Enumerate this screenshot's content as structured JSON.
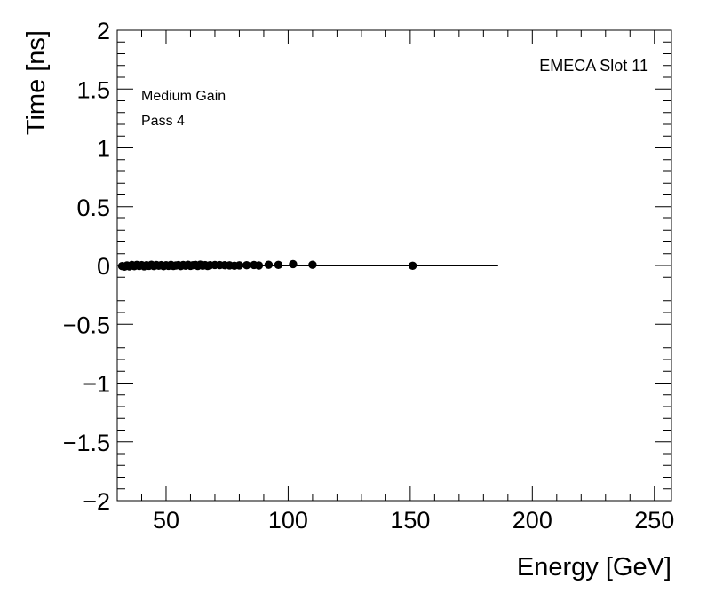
{
  "chart_data": {
    "type": "scatter",
    "title": "",
    "xlabel": "Energy [GeV]",
    "ylabel": "Time [ns]",
    "xlim": [
      30,
      257
    ],
    "ylim": [
      -2,
      2
    ],
    "x_ticks": [
      50,
      100,
      150,
      200,
      250
    ],
    "x_tick_labels": [
      "50",
      "100",
      "150",
      "200",
      "250"
    ],
    "y_ticks": [
      -2,
      -1.5,
      -1,
      -0.5,
      0,
      0.5,
      1,
      1.5,
      2
    ],
    "y_tick_labels": [
      "−2",
      "−1.5",
      "−1",
      "−0.5",
      "0",
      "0.5",
      "1",
      "1.5",
      "2"
    ],
    "annotations": {
      "slot": "EMECA Slot 11",
      "gain": "Medium Gain",
      "pass": "Pass 4"
    },
    "grid": false,
    "legend": "none",
    "marker_color": "#000000",
    "series": [
      {
        "points": [
          [
            32,
            -0.005
          ],
          [
            33,
            -0.01
          ],
          [
            34,
            0.0
          ],
          [
            35,
            -0.008
          ],
          [
            36,
            0.004
          ],
          [
            37,
            -0.006
          ],
          [
            38,
            0.005
          ],
          [
            39,
            -0.004
          ],
          [
            40,
            0.003
          ],
          [
            41,
            -0.007
          ],
          [
            42,
            0.002
          ],
          [
            43,
            -0.003
          ],
          [
            44,
            0.006
          ],
          [
            45,
            -0.005
          ],
          [
            46,
            0.004
          ],
          [
            47,
            -0.002
          ],
          [
            48,
            0.003
          ],
          [
            49,
            -0.006
          ],
          [
            50,
            0.002
          ],
          [
            51,
            -0.003
          ],
          [
            52,
            0.005
          ],
          [
            53,
            -0.004
          ],
          [
            54,
            0.0
          ],
          [
            55,
            0.003
          ],
          [
            56,
            -0.005
          ],
          [
            57,
            0.004
          ],
          [
            58,
            -0.002
          ],
          [
            59,
            0.006
          ],
          [
            60,
            -0.003
          ],
          [
            61,
            0.002
          ],
          [
            62,
            0.005
          ],
          [
            63,
            -0.004
          ],
          [
            64,
            0.007
          ],
          [
            65,
            -0.002
          ],
          [
            66,
            0.003
          ],
          [
            67,
            -0.004
          ],
          [
            68,
            0.002
          ],
          [
            70,
            0.004
          ],
          [
            72,
            0.003
          ],
          [
            74,
            0.002
          ],
          [
            76,
            0.001
          ],
          [
            78,
            -0.002
          ],
          [
            80,
            0.001
          ],
          [
            83,
            0.002
          ],
          [
            86,
            0.004
          ],
          [
            88,
            0.0
          ],
          [
            92,
            0.006
          ],
          [
            96,
            0.005
          ],
          [
            102,
            0.012
          ],
          [
            110,
            0.006
          ],
          [
            151,
            -0.002
          ]
        ]
      }
    ],
    "fit_line": {
      "x": [
        32,
        186
      ],
      "y": [
        0.0,
        0.0
      ]
    }
  }
}
